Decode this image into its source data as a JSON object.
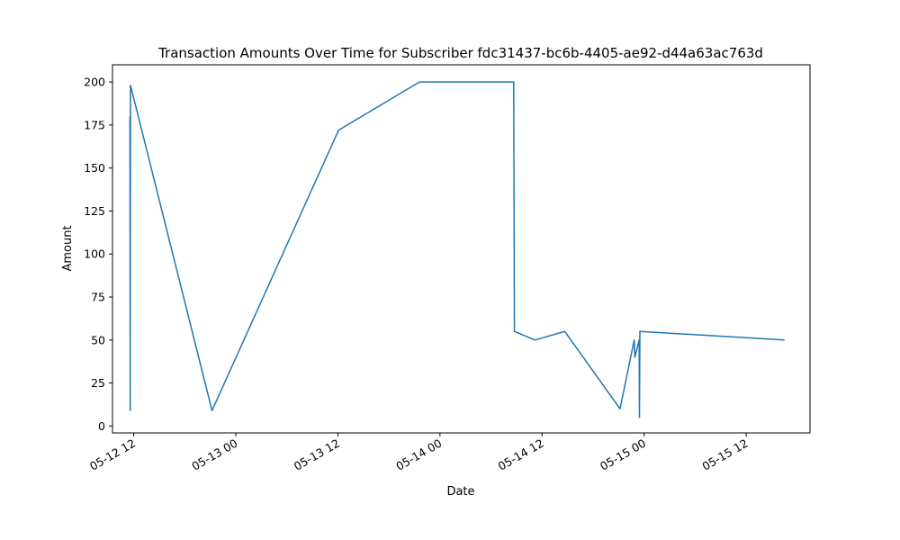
{
  "chart_data": {
    "type": "line",
    "title": "Transaction Amounts Over Time for Subscriber fdc31437-bc6b-4405-ae92-d44a63ac763d",
    "xlabel": "Date",
    "ylabel": "Amount",
    "x_axis_type": "datetime",
    "xlim": [
      "2024-05-12T09:30",
      "2024-05-15T19:30"
    ],
    "ylim": [
      -4,
      210
    ],
    "grid": false,
    "legend": "none",
    "line_color": "#1f77b4",
    "x_ticks": [
      {
        "value": "2024-05-12T12:00",
        "label": "05-12 12"
      },
      {
        "value": "2024-05-13T00:00",
        "label": "05-13 00"
      },
      {
        "value": "2024-05-13T12:00",
        "label": "05-13 12"
      },
      {
        "value": "2024-05-14T00:00",
        "label": "05-14 00"
      },
      {
        "value": "2024-05-14T12:00",
        "label": "05-14 12"
      },
      {
        "value": "2024-05-15T00:00",
        "label": "05-15 00"
      },
      {
        "value": "2024-05-15T12:00",
        "label": "05-15 12"
      }
    ],
    "y_ticks": [
      0,
      25,
      50,
      75,
      100,
      125,
      150,
      175,
      200
    ],
    "series": [
      {
        "points": [
          {
            "x": "2024-05-12T11:33",
            "y": 180
          },
          {
            "x": "2024-05-12T11:35",
            "y": 9
          },
          {
            "x": "2024-05-12T11:37",
            "y": 198
          },
          {
            "x": "2024-05-12T21:12",
            "y": 9
          },
          {
            "x": "2024-05-13T12:05",
            "y": 172
          },
          {
            "x": "2024-05-13T21:35",
            "y": 200
          },
          {
            "x": "2024-05-14T08:40",
            "y": 200
          },
          {
            "x": "2024-05-14T08:45",
            "y": 55
          },
          {
            "x": "2024-05-14T11:10",
            "y": 50
          },
          {
            "x": "2024-05-14T14:40",
            "y": 55
          },
          {
            "x": "2024-05-14T21:10",
            "y": 10
          },
          {
            "x": "2024-05-14T22:50",
            "y": 50
          },
          {
            "x": "2024-05-14T22:55",
            "y": 40
          },
          {
            "x": "2024-05-14T23:25",
            "y": 50
          },
          {
            "x": "2024-05-14T23:27",
            "y": 5
          },
          {
            "x": "2024-05-14T23:30",
            "y": 55
          },
          {
            "x": "2024-05-15T16:30",
            "y": 50
          }
        ]
      }
    ]
  }
}
